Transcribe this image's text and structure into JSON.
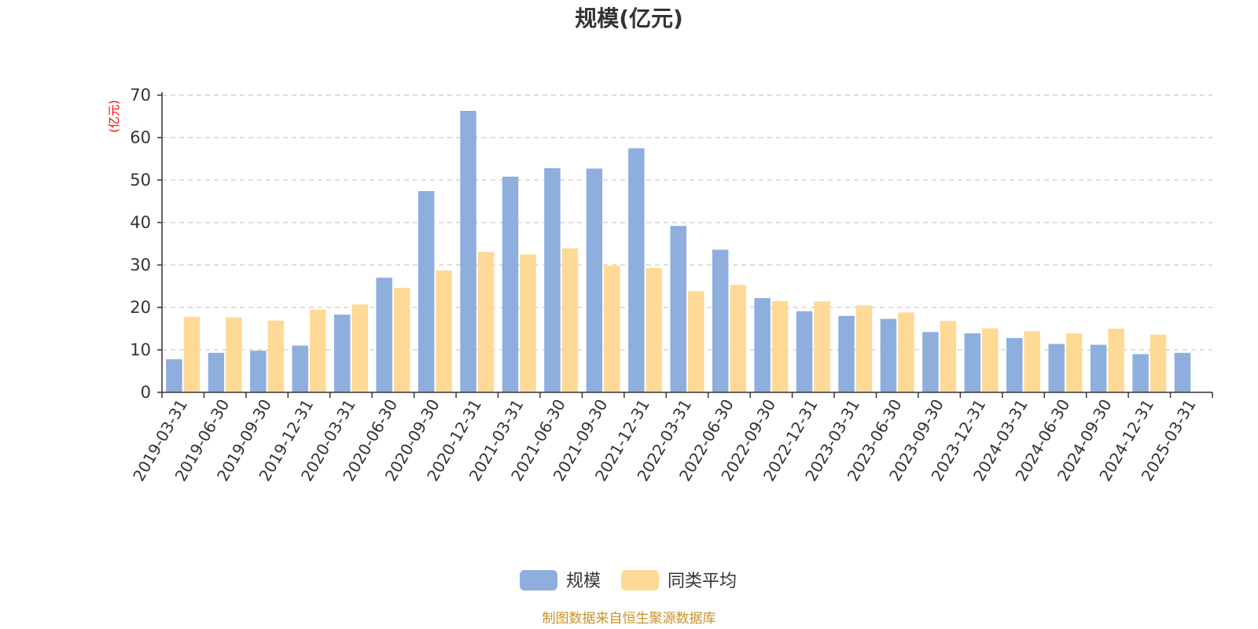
{
  "chart_data": {
    "type": "bar",
    "title": "规模(亿元)",
    "unit_label": "(亿元)",
    "ylim": [
      0,
      70
    ],
    "yticks": [
      0,
      10,
      20,
      30,
      40,
      50,
      60,
      70
    ],
    "grid": true,
    "legend_position": "bottom-center",
    "categories": [
      "2019-03-31",
      "2019-06-30",
      "2019-09-30",
      "2019-12-31",
      "2020-03-31",
      "2020-06-30",
      "2020-09-30",
      "2020-12-31",
      "2021-03-31",
      "2021-06-30",
      "2021-09-30",
      "2021-12-31",
      "2022-03-31",
      "2022-06-30",
      "2022-09-30",
      "2022-12-31",
      "2023-03-31",
      "2023-06-30",
      "2023-09-30",
      "2023-12-31",
      "2024-03-31",
      "2024-06-30",
      "2024-09-30",
      "2024-12-31",
      "2025-03-31"
    ],
    "series": [
      {
        "name": "规模",
        "color": "#8eaedd",
        "values": [
          7.8,
          9.3,
          9.8,
          11.0,
          18.3,
          27.0,
          47.4,
          66.3,
          50.8,
          52.8,
          52.7,
          57.5,
          39.2,
          33.6,
          22.2,
          19.1,
          18.0,
          17.3,
          14.2,
          13.9,
          12.8,
          11.4,
          11.2,
          9.0,
          9.3
        ]
      },
      {
        "name": "同类平均",
        "color": "#ffd996",
        "values": [
          17.8,
          17.7,
          16.9,
          19.5,
          20.7,
          24.6,
          28.7,
          33.1,
          32.5,
          33.9,
          29.8,
          29.3,
          23.8,
          25.3,
          21.5,
          21.4,
          20.5,
          18.8,
          16.8,
          15.1,
          14.4,
          13.9,
          15.0,
          13.6,
          null
        ]
      }
    ]
  },
  "source_text": "制图数据来自恒生聚源数据库"
}
